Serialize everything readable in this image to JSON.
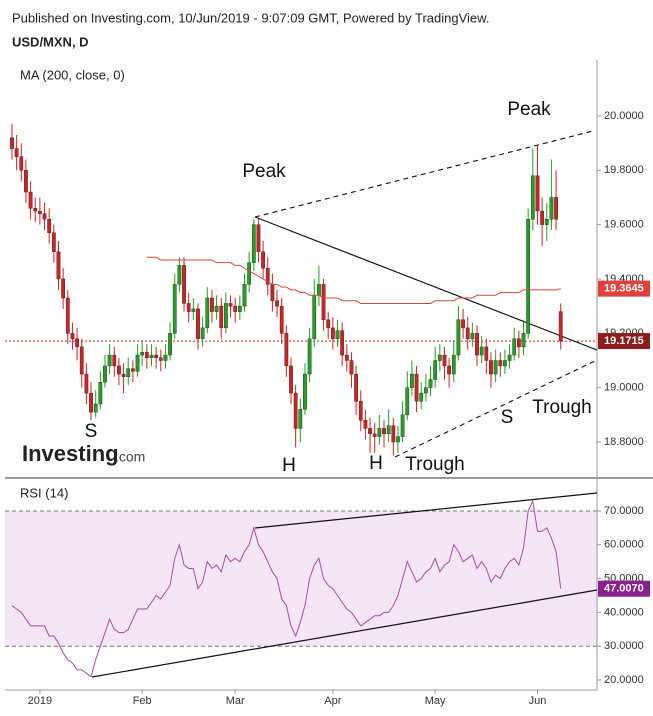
{
  "header": {
    "published": "Published on Investing.com, 10/Jun/2019 - 9:07:09 GMT, Powered by TradingView.",
    "logo": "Investing",
    "logo_suffix": ".com"
  },
  "chart_data": [
    {
      "type": "candlestick",
      "title": "USD/MXN, D",
      "up_color": "#22a022",
      "down_color": "#d32020",
      "xlim": [
        -1.5,
        125.8
      ],
      "ylim": [
        18.6675,
        20.206
      ],
      "yticks": [
        {
          "value": 18.8,
          "label": "18.8000"
        },
        {
          "value": 19,
          "label": "19.0000"
        },
        {
          "value": 19.2,
          "label": "19.2000"
        },
        {
          "value": 19.4,
          "label": "19.4000"
        },
        {
          "value": 19.6,
          "label": "19.6000"
        },
        {
          "value": 19.8,
          "label": "19.8000"
        },
        {
          "value": 20,
          "label": "20.0000"
        }
      ],
      "last_close_color": "#8e1c1c",
      "candles": [
        [
          19.92,
          19.97,
          19.84,
          19.88
        ],
        [
          19.88,
          19.93,
          19.8,
          19.85
        ],
        [
          19.85,
          19.9,
          19.76,
          19.8
        ],
        [
          19.8,
          19.84,
          19.68,
          19.72
        ],
        [
          19.72,
          19.76,
          19.62,
          19.66
        ],
        [
          19.66,
          19.7,
          19.61,
          19.65
        ],
        [
          19.65,
          19.7,
          19.6,
          19.64
        ],
        [
          19.64,
          19.68,
          19.58,
          19.62
        ],
        [
          19.62,
          19.66,
          19.53,
          19.57
        ],
        [
          19.57,
          19.6,
          19.46,
          19.5
        ],
        [
          19.5,
          19.54,
          19.36,
          19.4
        ],
        [
          19.4,
          19.44,
          19.29,
          19.33
        ],
        [
          19.33,
          19.36,
          19.16,
          19.2
        ],
        [
          19.2,
          19.24,
          19.14,
          19.18
        ],
        [
          19.18,
          19.22,
          19.1,
          19.15
        ],
        [
          19.15,
          19.18,
          19.0,
          19.05
        ],
        [
          19.05,
          19.09,
          18.94,
          18.98
        ],
        [
          18.98,
          19.02,
          18.88,
          18.91
        ],
        [
          18.91,
          18.99,
          18.89,
          18.94
        ],
        [
          18.94,
          19.06,
          18.92,
          19.02
        ],
        [
          19.02,
          19.12,
          19.0,
          19.08
        ],
        [
          19.08,
          19.16,
          19.05,
          19.12
        ],
        [
          19.12,
          19.15,
          19.04,
          19.08
        ],
        [
          19.08,
          19.11,
          19.01,
          19.05
        ],
        [
          19.05,
          19.09,
          18.98,
          19.04
        ],
        [
          19.04,
          19.11,
          19.01,
          19.07
        ],
        [
          19.07,
          19.1,
          19.02,
          19.06
        ],
        [
          19.06,
          19.16,
          19.04,
          19.12
        ],
        [
          19.12,
          19.17,
          19.08,
          19.13
        ],
        [
          19.13,
          19.16,
          19.07,
          19.11
        ],
        [
          19.11,
          19.16,
          19.08,
          19.12
        ],
        [
          19.12,
          19.15,
          19.07,
          19.11
        ],
        [
          19.11,
          19.14,
          19.06,
          19.1
        ],
        [
          19.1,
          19.16,
          19.07,
          19.12
        ],
        [
          19.12,
          19.24,
          19.1,
          19.2
        ],
        [
          19.2,
          19.42,
          19.18,
          19.38
        ],
        [
          19.38,
          19.48,
          19.35,
          19.45
        ],
        [
          19.45,
          19.48,
          19.28,
          19.31
        ],
        [
          19.31,
          19.35,
          19.24,
          19.28
        ],
        [
          19.28,
          19.33,
          19.25,
          19.29
        ],
        [
          19.29,
          19.31,
          19.14,
          19.18
        ],
        [
          19.18,
          19.26,
          19.15,
          19.22
        ],
        [
          19.22,
          19.37,
          19.2,
          19.33
        ],
        [
          19.33,
          19.36,
          19.24,
          19.28
        ],
        [
          19.28,
          19.34,
          19.25,
          19.3
        ],
        [
          19.3,
          19.33,
          19.18,
          19.22
        ],
        [
          19.22,
          19.35,
          19.2,
          19.31
        ],
        [
          19.31,
          19.34,
          19.26,
          19.3
        ],
        [
          19.3,
          19.33,
          19.24,
          19.28
        ],
        [
          19.28,
          19.34,
          19.25,
          19.3
        ],
        [
          19.3,
          19.42,
          19.28,
          19.38
        ],
        [
          19.38,
          19.5,
          19.35,
          19.46
        ],
        [
          19.46,
          19.62,
          19.43,
          19.6
        ],
        [
          19.6,
          19.62,
          19.46,
          19.5
        ],
        [
          19.5,
          19.54,
          19.4,
          19.44
        ],
        [
          19.44,
          19.48,
          19.34,
          19.38
        ],
        [
          19.38,
          19.42,
          19.28,
          19.32
        ],
        [
          19.32,
          19.36,
          19.26,
          19.3
        ],
        [
          19.3,
          19.33,
          19.16,
          19.2
        ],
        [
          19.2,
          19.23,
          19.04,
          19.08
        ],
        [
          19.08,
          19.11,
          18.94,
          18.98
        ],
        [
          18.98,
          19.01,
          18.78,
          18.85
        ],
        [
          18.85,
          18.96,
          18.8,
          18.92
        ],
        [
          18.92,
          19.09,
          18.9,
          19.05
        ],
        [
          19.05,
          19.22,
          19.02,
          19.18
        ],
        [
          19.18,
          19.4,
          19.15,
          19.34
        ],
        [
          19.34,
          19.45,
          19.3,
          19.38
        ],
        [
          19.38,
          19.4,
          19.21,
          19.25
        ],
        [
          19.25,
          19.28,
          19.18,
          19.22
        ],
        [
          19.22,
          19.26,
          19.14,
          19.18
        ],
        [
          19.18,
          19.25,
          19.15,
          19.21
        ],
        [
          19.21,
          19.24,
          19.08,
          19.12
        ],
        [
          19.12,
          19.16,
          19.06,
          19.1
        ],
        [
          19.1,
          19.13,
          19.0,
          19.05
        ],
        [
          19.05,
          19.08,
          18.9,
          18.95
        ],
        [
          18.95,
          18.99,
          18.84,
          18.88
        ],
        [
          18.88,
          18.92,
          18.81,
          18.85
        ],
        [
          18.85,
          18.89,
          18.76,
          18.83
        ],
        [
          18.83,
          18.87,
          18.76,
          18.82
        ],
        [
          18.82,
          18.9,
          18.79,
          18.85
        ],
        [
          18.85,
          18.88,
          18.78,
          18.83
        ],
        [
          18.83,
          18.92,
          18.8,
          18.86
        ],
        [
          18.86,
          18.89,
          18.75,
          18.8
        ],
        [
          18.8,
          18.86,
          18.76,
          18.82
        ],
        [
          18.82,
          18.95,
          18.8,
          18.9
        ],
        [
          18.9,
          19.06,
          18.88,
          19.0
        ],
        [
          19.0,
          19.1,
          18.97,
          19.05
        ],
        [
          19.05,
          19.08,
          18.91,
          18.95
        ],
        [
          18.95,
          19.02,
          18.92,
          18.98
        ],
        [
          18.98,
          19.05,
          18.95,
          19.0
        ],
        [
          19.0,
          19.08,
          18.97,
          19.03
        ],
        [
          19.03,
          19.15,
          19.0,
          19.1
        ],
        [
          19.1,
          19.16,
          19.06,
          19.12
        ],
        [
          19.12,
          19.15,
          19.03,
          19.08
        ],
        [
          19.08,
          19.11,
          19.0,
          19.05
        ],
        [
          19.05,
          19.17,
          19.02,
          19.12
        ],
        [
          19.12,
          19.3,
          19.1,
          19.25
        ],
        [
          19.25,
          19.29,
          19.18,
          19.22
        ],
        [
          19.22,
          19.26,
          19.14,
          19.18
        ],
        [
          19.18,
          19.24,
          19.15,
          19.2
        ],
        [
          19.2,
          19.23,
          19.08,
          19.12
        ],
        [
          19.12,
          19.19,
          19.09,
          19.15
        ],
        [
          19.15,
          19.18,
          19.05,
          19.1
        ],
        [
          19.1,
          19.13,
          19.0,
          19.05
        ],
        [
          19.05,
          19.14,
          19.02,
          19.1
        ],
        [
          19.1,
          19.13,
          19.04,
          19.08
        ],
        [
          19.08,
          19.14,
          19.05,
          19.1
        ],
        [
          19.1,
          19.16,
          19.07,
          19.12
        ],
        [
          19.12,
          19.22,
          19.1,
          19.18
        ],
        [
          19.18,
          19.21,
          19.11,
          19.15
        ],
        [
          19.15,
          19.25,
          19.12,
          19.2
        ],
        [
          19.2,
          19.66,
          19.18,
          19.62
        ],
        [
          19.62,
          19.88,
          19.58,
          19.78
        ],
        [
          19.78,
          19.89,
          19.6,
          19.65
        ],
        [
          19.65,
          19.7,
          19.52,
          19.6
        ],
        [
          19.6,
          19.68,
          19.54,
          19.62
        ],
        [
          19.62,
          19.84,
          19.58,
          19.7
        ],
        [
          19.7,
          19.8,
          19.58,
          19.62
        ],
        [
          19.28,
          19.31,
          19.14,
          19.1715
        ]
      ],
      "series": [
        {
          "name": "MA (200, close, 0)",
          "color": "#e0413a",
          "values": [
            null,
            null,
            null,
            null,
            null,
            null,
            null,
            null,
            null,
            null,
            null,
            null,
            null,
            null,
            null,
            null,
            null,
            null,
            null,
            null,
            null,
            null,
            null,
            null,
            null,
            null,
            null,
            null,
            null,
            19.48,
            19.48,
            19.48,
            19.47,
            19.47,
            19.47,
            19.47,
            19.47,
            19.47,
            19.47,
            19.47,
            19.47,
            19.47,
            19.47,
            19.47,
            19.46,
            19.46,
            19.46,
            19.46,
            19.45,
            19.45,
            19.44,
            19.43,
            19.42,
            19.41,
            19.4,
            19.39,
            19.38,
            19.38,
            19.37,
            19.37,
            19.36,
            19.36,
            19.35,
            19.35,
            19.34,
            19.34,
            19.34,
            19.33,
            19.33,
            19.33,
            19.33,
            19.32,
            19.32,
            19.32,
            19.32,
            19.31,
            19.31,
            19.31,
            19.31,
            19.31,
            19.31,
            19.31,
            19.31,
            19.31,
            19.31,
            19.31,
            19.31,
            19.31,
            19.31,
            19.31,
            19.31,
            19.32,
            19.32,
            19.32,
            19.32,
            19.32,
            19.33,
            19.33,
            19.33,
            19.33,
            19.34,
            19.34,
            19.34,
            19.34,
            19.34,
            19.35,
            19.35,
            19.35,
            19.35,
            19.35,
            19.36,
            19.36,
            19.36,
            19.36,
            19.36,
            19.36,
            19.36,
            19.36,
            19.3645
          ]
        }
      ],
      "annotations": [
        "Peak",
        "Peak",
        "S",
        "H",
        "H",
        "Trough",
        "S",
        "Trough"
      ]
    },
    {
      "type": "line",
      "title": "RSI (14)",
      "xlim": [
        -1.5,
        125.8
      ],
      "ylim": [
        17.04,
        78.58
      ],
      "xticks": [
        {
          "value": 6,
          "label": "2019"
        },
        {
          "value": 28,
          "label": "Feb"
        },
        {
          "value": 48,
          "label": "Mar"
        },
        {
          "value": 69,
          "label": "Apr"
        },
        {
          "value": 91,
          "label": "May"
        },
        {
          "value": 113,
          "label": "Jun"
        }
      ],
      "yticks": [
        {
          "value": 20,
          "label": "20.0000"
        },
        {
          "value": 30,
          "label": "30.0000"
        },
        {
          "value": 40,
          "label": "40.0000"
        },
        {
          "value": 50,
          "label": "50.0000"
        },
        {
          "value": 60,
          "label": "60.0000"
        },
        {
          "value": 70,
          "label": "70.0000"
        }
      ],
      "band": [
        30,
        70
      ],
      "band_color": "#f4e6f4",
      "series": [
        {
          "name": "RSI (14)",
          "color": "#a64ca6",
          "last_label": "47.0070",
          "values": [
            42,
            41,
            40,
            38,
            36,
            36,
            36,
            36,
            33,
            33,
            31,
            28,
            26,
            25,
            23,
            23,
            22,
            21,
            26,
            30,
            34,
            38,
            35,
            34,
            34,
            35,
            38,
            41,
            41,
            41,
            43,
            45,
            44,
            46,
            48,
            56,
            60,
            54,
            53,
            53,
            47,
            49,
            55,
            53,
            54,
            52,
            57,
            55,
            56,
            55,
            58,
            60,
            65,
            60,
            58,
            55,
            52,
            50,
            44,
            42,
            36,
            33,
            37,
            42,
            50,
            54,
            56,
            50,
            48,
            47,
            45,
            43,
            41,
            40,
            38,
            36,
            37,
            38,
            39,
            39,
            40,
            40,
            42,
            45,
            50,
            55,
            52,
            49,
            50,
            52,
            53,
            56,
            52,
            54,
            55,
            60,
            58,
            55,
            56,
            57,
            53,
            55,
            53,
            49,
            51,
            50,
            53,
            55,
            56,
            54,
            59,
            70,
            73,
            64,
            64,
            65,
            62,
            58,
            47.007
          ]
        }
      ]
    }
  ]
}
